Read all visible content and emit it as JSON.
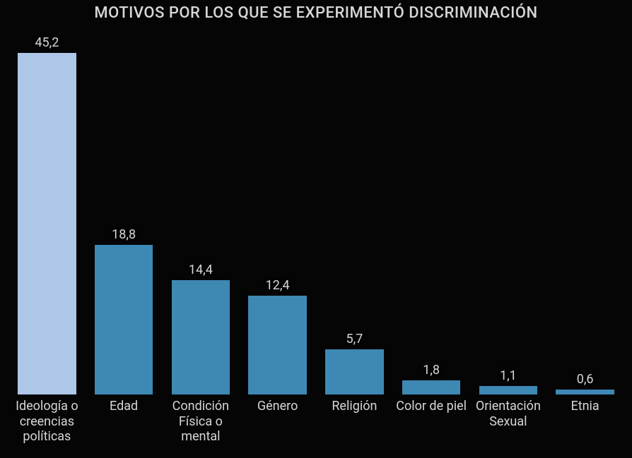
{
  "chart": {
    "type": "bar",
    "title": "MOTIVOS POR LOS QUE SE EXPERIMENTÓ DISCRIMINACIÓN",
    "title_fontsize": 22,
    "title_color": "#d7d7d7",
    "background_color": "#050505",
    "text_color": "#d6d6d6",
    "value_label_fontsize": 18,
    "x_label_fontsize": 18,
    "ylim_max": 45.2,
    "decimal_separator": ",",
    "bars": [
      {
        "label": "Ideología o creencias políticas",
        "value": 45.2,
        "color": "#aec7e8"
      },
      {
        "label": "Edad",
        "value": 18.8,
        "color": "#3e88b4"
      },
      {
        "label": "Condición Física o mental",
        "value": 14.4,
        "color": "#3e88b4"
      },
      {
        "label": "Género",
        "value": 12.4,
        "color": "#3e88b4"
      },
      {
        "label": "Religión",
        "value": 5.7,
        "color": "#3e88b4"
      },
      {
        "label": "Color de piel",
        "value": 1.8,
        "color": "#3e88b4"
      },
      {
        "label": "Orientación Sexual",
        "value": 1.1,
        "color": "#3e88b4"
      },
      {
        "label": "Etnia",
        "value": 0.6,
        "color": "#3e88b4"
      }
    ]
  }
}
